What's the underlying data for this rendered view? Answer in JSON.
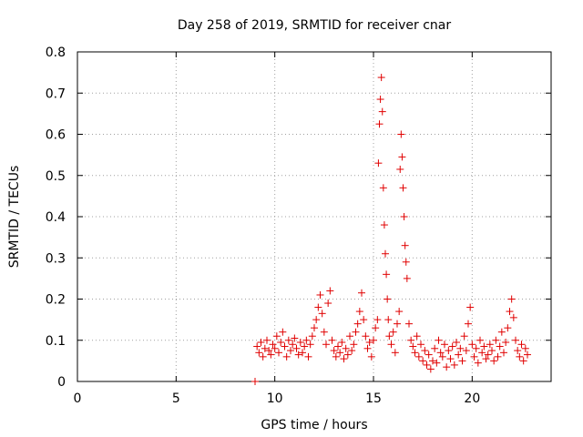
{
  "chart_data": {
    "type": "scatter",
    "title": "Day 258 of 2019, SRMTID for receiver cnar",
    "xlabel": "GPS time / hours",
    "ylabel": "SRMTID / TECUs",
    "xlim": [
      0,
      24
    ],
    "ylim": [
      0,
      0.8
    ],
    "x_ticks": [
      0,
      5,
      10,
      15,
      20
    ],
    "x_tick_labels": [
      "0",
      "5",
      "10",
      "15",
      "20"
    ],
    "y_ticks": [
      0,
      0.1,
      0.2,
      0.3,
      0.4,
      0.5,
      0.6,
      0.7,
      0.8
    ],
    "y_tick_labels": [
      "0",
      "0.1",
      "0.2",
      "0.3",
      "0.4",
      "0.5",
      "0.6",
      "0.7",
      "0.8"
    ],
    "grid": true,
    "marker": "+",
    "marker_color": "#e00000",
    "series": [
      {
        "name": "SRMTID",
        "points": [
          [
            9.0,
            0.0
          ],
          [
            9.1,
            0.085
          ],
          [
            9.2,
            0.07
          ],
          [
            9.3,
            0.095
          ],
          [
            9.4,
            0.06
          ],
          [
            9.5,
            0.08
          ],
          [
            9.6,
            0.1
          ],
          [
            9.7,
            0.075
          ],
          [
            9.8,
            0.065
          ],
          [
            9.9,
            0.09
          ],
          [
            10.0,
            0.08
          ],
          [
            10.1,
            0.11
          ],
          [
            10.2,
            0.07
          ],
          [
            10.3,
            0.095
          ],
          [
            10.4,
            0.12
          ],
          [
            10.5,
            0.085
          ],
          [
            10.6,
            0.06
          ],
          [
            10.7,
            0.1
          ],
          [
            10.8,
            0.075
          ],
          [
            10.9,
            0.09
          ],
          [
            11.0,
            0.105
          ],
          [
            11.1,
            0.08
          ],
          [
            11.2,
            0.065
          ],
          [
            11.3,
            0.095
          ],
          [
            11.4,
            0.07
          ],
          [
            11.5,
            0.085
          ],
          [
            11.6,
            0.1
          ],
          [
            11.7,
            0.06
          ],
          [
            11.8,
            0.09
          ],
          [
            11.9,
            0.11
          ],
          [
            12.0,
            0.13
          ],
          [
            12.1,
            0.15
          ],
          [
            12.2,
            0.18
          ],
          [
            12.3,
            0.21
          ],
          [
            12.4,
            0.165
          ],
          [
            12.5,
            0.12
          ],
          [
            12.6,
            0.09
          ],
          [
            12.7,
            0.19
          ],
          [
            12.8,
            0.22
          ],
          [
            12.9,
            0.1
          ],
          [
            13.0,
            0.075
          ],
          [
            13.1,
            0.06
          ],
          [
            13.2,
            0.085
          ],
          [
            13.3,
            0.07
          ],
          [
            13.4,
            0.095
          ],
          [
            13.5,
            0.055
          ],
          [
            13.6,
            0.08
          ],
          [
            13.7,
            0.065
          ],
          [
            13.8,
            0.11
          ],
          [
            13.9,
            0.075
          ],
          [
            14.0,
            0.09
          ],
          [
            14.1,
            0.12
          ],
          [
            14.2,
            0.14
          ],
          [
            14.3,
            0.17
          ],
          [
            14.4,
            0.215
          ],
          [
            14.5,
            0.15
          ],
          [
            14.6,
            0.11
          ],
          [
            14.7,
            0.08
          ],
          [
            14.8,
            0.095
          ],
          [
            14.9,
            0.06
          ],
          [
            15.0,
            0.1
          ],
          [
            15.1,
            0.13
          ],
          [
            15.2,
            0.15
          ],
          [
            15.25,
            0.53
          ],
          [
            15.3,
            0.625
          ],
          [
            15.35,
            0.685
          ],
          [
            15.4,
            0.738
          ],
          [
            15.45,
            0.655
          ],
          [
            15.5,
            0.47
          ],
          [
            15.55,
            0.38
          ],
          [
            15.6,
            0.31
          ],
          [
            15.65,
            0.26
          ],
          [
            15.7,
            0.2
          ],
          [
            15.75,
            0.15
          ],
          [
            15.8,
            0.11
          ],
          [
            15.9,
            0.09
          ],
          [
            16.0,
            0.12
          ],
          [
            16.1,
            0.07
          ],
          [
            16.2,
            0.14
          ],
          [
            16.3,
            0.17
          ],
          [
            16.35,
            0.515
          ],
          [
            16.4,
            0.6
          ],
          [
            16.45,
            0.545
          ],
          [
            16.5,
            0.47
          ],
          [
            16.55,
            0.4
          ],
          [
            16.6,
            0.33
          ],
          [
            16.65,
            0.29
          ],
          [
            16.7,
            0.25
          ],
          [
            16.8,
            0.14
          ],
          [
            16.9,
            0.1
          ],
          [
            17.0,
            0.085
          ],
          [
            17.1,
            0.07
          ],
          [
            17.2,
            0.11
          ],
          [
            17.3,
            0.06
          ],
          [
            17.4,
            0.09
          ],
          [
            17.5,
            0.05
          ],
          [
            17.6,
            0.075
          ],
          [
            17.7,
            0.04
          ],
          [
            17.8,
            0.065
          ],
          [
            17.9,
            0.03
          ],
          [
            18.0,
            0.05
          ],
          [
            18.1,
            0.08
          ],
          [
            18.2,
            0.045
          ],
          [
            18.3,
            0.1
          ],
          [
            18.4,
            0.07
          ],
          [
            18.5,
            0.06
          ],
          [
            18.6,
            0.09
          ],
          [
            18.7,
            0.035
          ],
          [
            18.8,
            0.075
          ],
          [
            18.9,
            0.055
          ],
          [
            19.0,
            0.085
          ],
          [
            19.1,
            0.04
          ],
          [
            19.2,
            0.095
          ],
          [
            19.3,
            0.065
          ],
          [
            19.4,
            0.08
          ],
          [
            19.5,
            0.05
          ],
          [
            19.6,
            0.11
          ],
          [
            19.7,
            0.075
          ],
          [
            19.8,
            0.14
          ],
          [
            19.9,
            0.18
          ],
          [
            20.0,
            0.09
          ],
          [
            20.1,
            0.06
          ],
          [
            20.2,
            0.08
          ],
          [
            20.3,
            0.045
          ],
          [
            20.4,
            0.1
          ],
          [
            20.5,
            0.07
          ],
          [
            20.6,
            0.085
          ],
          [
            20.7,
            0.055
          ],
          [
            20.8,
            0.065
          ],
          [
            20.9,
            0.09
          ],
          [
            21.0,
            0.075
          ],
          [
            21.1,
            0.05
          ],
          [
            21.2,
            0.1
          ],
          [
            21.3,
            0.06
          ],
          [
            21.4,
            0.085
          ],
          [
            21.5,
            0.12
          ],
          [
            21.6,
            0.07
          ],
          [
            21.7,
            0.095
          ],
          [
            21.8,
            0.13
          ],
          [
            21.9,
            0.17
          ],
          [
            22.0,
            0.2
          ],
          [
            22.1,
            0.155
          ],
          [
            22.2,
            0.1
          ],
          [
            22.3,
            0.075
          ],
          [
            22.4,
            0.06
          ],
          [
            22.5,
            0.09
          ],
          [
            22.6,
            0.05
          ],
          [
            22.7,
            0.08
          ],
          [
            22.8,
            0.065
          ]
        ]
      }
    ]
  }
}
